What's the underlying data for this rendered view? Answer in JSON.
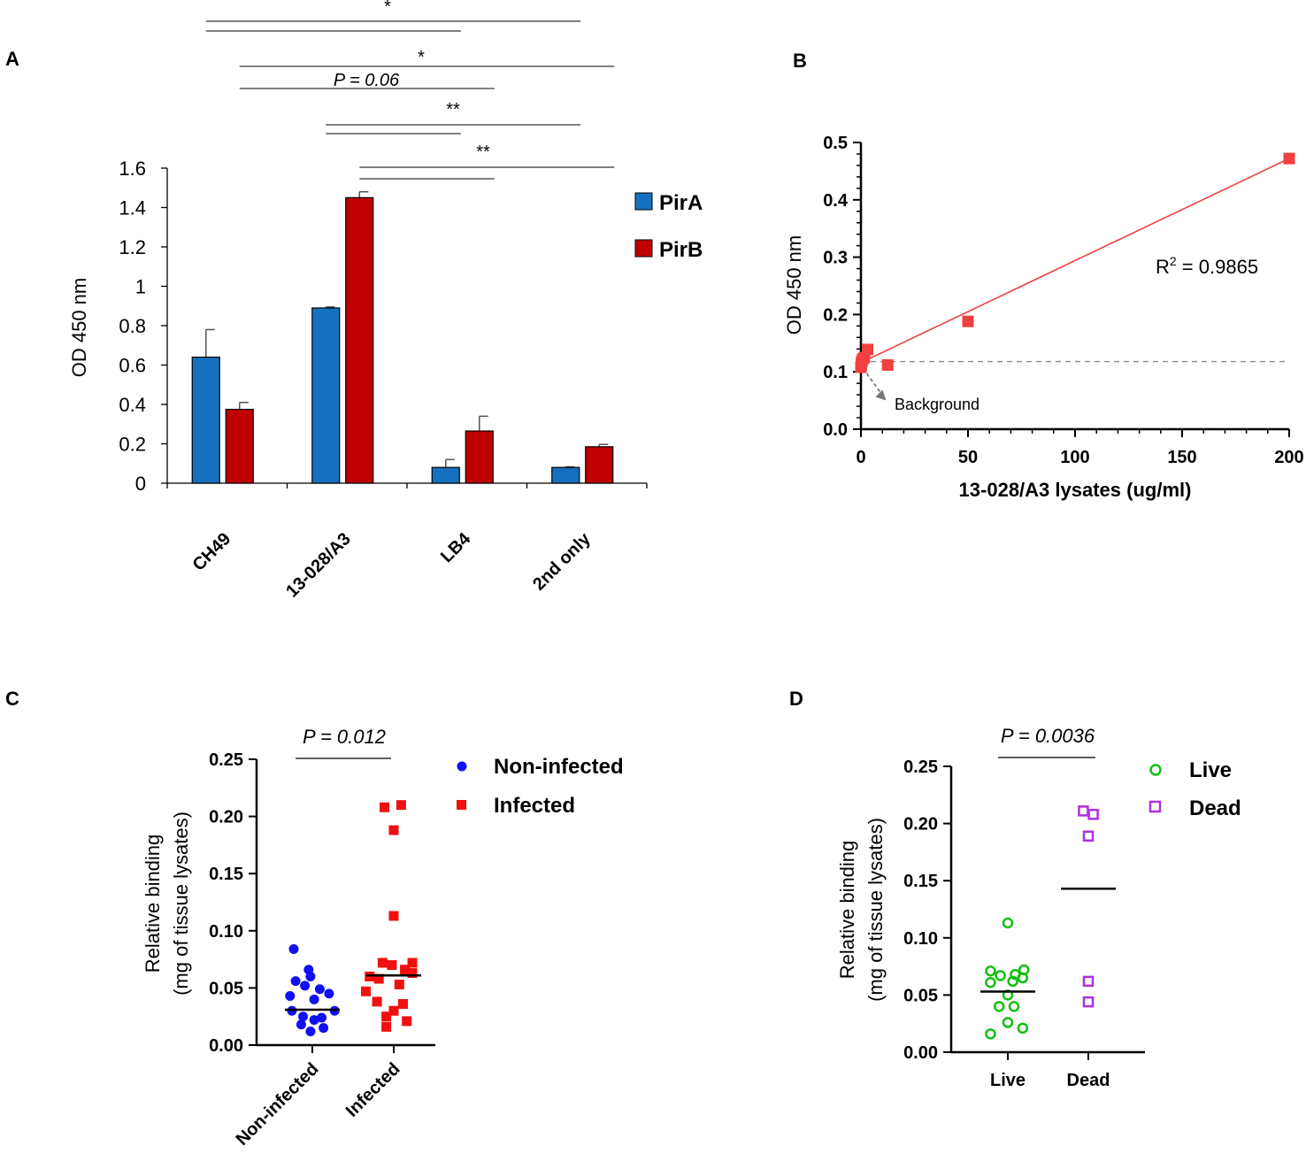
{
  "colors": {
    "pirA": "#1571c0",
    "pirB": "#c00000",
    "scatter_b": "#f04040",
    "non_infected": "#1010f0",
    "infected": "#f01010",
    "live": "#10c010",
    "dead": "#b030e0",
    "background_line": "#888888"
  },
  "chart_data": [
    {
      "panel": "A",
      "type": "bar",
      "ylabel": "OD 450 nm",
      "xlabel": "",
      "ylim": [
        0,
        1.6
      ],
      "yticks": [
        "0",
        "0.2",
        "0.4",
        "0.6",
        "0.8",
        "1",
        "1.2",
        "1.4",
        "1.6"
      ],
      "ytick_values": [
        0,
        0.2,
        0.4,
        0.6,
        0.8,
        1.0,
        1.2,
        1.4,
        1.6
      ],
      "categories": [
        "CH49",
        "13-028/A3",
        "LB4",
        "2nd only"
      ],
      "series": [
        {
          "name": "PirA",
          "values": [
            0.64,
            0.89,
            0.08,
            0.08
          ],
          "errors": [
            0.14,
            0.005,
            0.04,
            0.003
          ]
        },
        {
          "name": "PirB",
          "values": [
            0.375,
            1.45,
            0.265,
            0.185
          ],
          "errors": [
            0.035,
            0.03,
            0.075,
            0.012
          ]
        }
      ],
      "legend": [
        "PirA",
        "PirB"
      ],
      "significance": [
        {
          "label": "*",
          "from": "CH49 PirA",
          "to": "2nd only PirA",
          "compare": "LB4 PirA"
        },
        {
          "label": "*",
          "from": "CH49 PirB",
          "to": "2nd only PirB",
          "compare": "LB4 PirB"
        },
        {
          "label": "P = 0.06",
          "from": "CH49 PirB",
          "to": "LB4 PirB"
        },
        {
          "label": "**",
          "from": "13-028/A3 PirA",
          "to": "2nd only PirA",
          "compare": "LB4 PirA"
        },
        {
          "label": "**",
          "from": "13-028/A3 PirB",
          "to": "2nd only PirB",
          "compare": "LB4 PirB"
        }
      ]
    },
    {
      "panel": "B",
      "type": "scatter",
      "xlabel": "13-028/A3 lysates (ug/ml)",
      "ylabel": "OD 450 nm",
      "xlim": [
        0,
        200
      ],
      "ylim": [
        0,
        0.5
      ],
      "xticks": [
        "0",
        "50",
        "100",
        "150",
        "200"
      ],
      "xtick_values": [
        0,
        50,
        100,
        150,
        200
      ],
      "yticks": [
        "0.0",
        "0.1",
        "0.2",
        "0.3",
        "0.4",
        "0.5"
      ],
      "ytick_values": [
        0,
        0.1,
        0.2,
        0.3,
        0.4,
        0.5
      ],
      "x": [
        0,
        0.2,
        0.4,
        0.8,
        1.6,
        3.1,
        12.5,
        50,
        200
      ],
      "y": [
        0.108,
        0.113,
        0.118,
        0.122,
        0.125,
        0.139,
        0.112,
        0.188,
        0.472
      ],
      "fit": {
        "intercept": 0.116,
        "slope": 0.00178
      },
      "background_level": 0.118,
      "r_squared_label": "R",
      "r_squared_sup": "2",
      "r_squared_value": " = 0.9865",
      "annotation": "Background"
    },
    {
      "panel": "C",
      "type": "scatter",
      "title": "P = 0.012",
      "ylabel_line1": "Relative binding",
      "ylabel_line2": "(mg of tissue lysates)",
      "categories": [
        "Non-infected",
        "Infected"
      ],
      "ylim": [
        0,
        0.25
      ],
      "yticks": [
        "0.00",
        "0.05",
        "0.10",
        "0.15",
        "0.20",
        "0.25"
      ],
      "ytick_values": [
        0,
        0.05,
        0.1,
        0.15,
        0.2,
        0.25
      ],
      "series": [
        {
          "name": "Non-infected",
          "median": 0.031,
          "points": [
            [
              -0.5,
              0.084
            ],
            [
              -0.1,
              0.066
            ],
            [
              -0.05,
              0.06
            ],
            [
              -0.45,
              0.056
            ],
            [
              -0.2,
              0.052
            ],
            [
              0.2,
              0.049
            ],
            [
              0.45,
              0.045
            ],
            [
              -0.6,
              0.043
            ],
            [
              0.05,
              0.04
            ],
            [
              -0.55,
              0.03
            ],
            [
              0.6,
              0.03
            ],
            [
              -0.25,
              0.025
            ],
            [
              0.25,
              0.024
            ],
            [
              0.05,
              0.022
            ],
            [
              -0.3,
              0.018
            ],
            [
              0.3,
              0.015
            ],
            [
              -0.05,
              0.012
            ]
          ]
        },
        {
          "name": "Infected",
          "median": 0.061,
          "points": [
            [
              -0.25,
              0.208
            ],
            [
              0.2,
              0.21
            ],
            [
              0.0,
              0.188
            ],
            [
              0.0,
              0.113
            ],
            [
              -0.3,
              0.072
            ],
            [
              -0.05,
              0.07
            ],
            [
              0.5,
              0.072
            ],
            [
              0.3,
              0.066
            ],
            [
              0.5,
              0.063
            ],
            [
              -0.65,
              0.06
            ],
            [
              -0.4,
              0.058
            ],
            [
              0.15,
              0.053
            ],
            [
              -0.75,
              0.047
            ],
            [
              -0.45,
              0.038
            ],
            [
              0.25,
              0.036
            ],
            [
              0.0,
              0.03
            ],
            [
              -0.2,
              0.025
            ],
            [
              0.35,
              0.021
            ],
            [
              -0.2,
              0.016
            ]
          ]
        }
      ]
    },
    {
      "panel": "D",
      "type": "scatter",
      "title": "P = 0.0036",
      "ylabel_line1": "Relative binding",
      "ylabel_line2": "(mg of tissue lysates)",
      "categories": [
        "Live",
        "Dead"
      ],
      "ylim": [
        0,
        0.25
      ],
      "yticks": [
        "0.00",
        "0.05",
        "0.10",
        "0.15",
        "0.20",
        "0.25"
      ],
      "ytick_values": [
        0,
        0.05,
        0.1,
        0.15,
        0.2,
        0.25
      ],
      "series": [
        {
          "name": "Live",
          "median": 0.053,
          "points": [
            [
              0.0,
              0.113
            ],
            [
              -0.7,
              0.071
            ],
            [
              -0.3,
              0.067
            ],
            [
              0.3,
              0.068
            ],
            [
              0.65,
              0.072
            ],
            [
              -0.7,
              0.061
            ],
            [
              0.2,
              0.062
            ],
            [
              0.6,
              0.065
            ],
            [
              0.0,
              0.05
            ],
            [
              -0.35,
              0.04
            ],
            [
              0.25,
              0.04
            ],
            [
              0.0,
              0.026
            ],
            [
              -0.7,
              0.016
            ],
            [
              0.6,
              0.021
            ]
          ]
        },
        {
          "name": "Dead",
          "median": 0.143,
          "points": [
            [
              -0.2,
              0.211
            ],
            [
              0.2,
              0.208
            ],
            [
              0.0,
              0.189
            ],
            [
              0.0,
              0.062
            ],
            [
              0.0,
              0.044
            ]
          ]
        }
      ]
    }
  ],
  "panels": {
    "a": {
      "letter": "A"
    },
    "b": {
      "letter": "B"
    },
    "c": {
      "letter": "C"
    },
    "d": {
      "letter": "D"
    }
  }
}
